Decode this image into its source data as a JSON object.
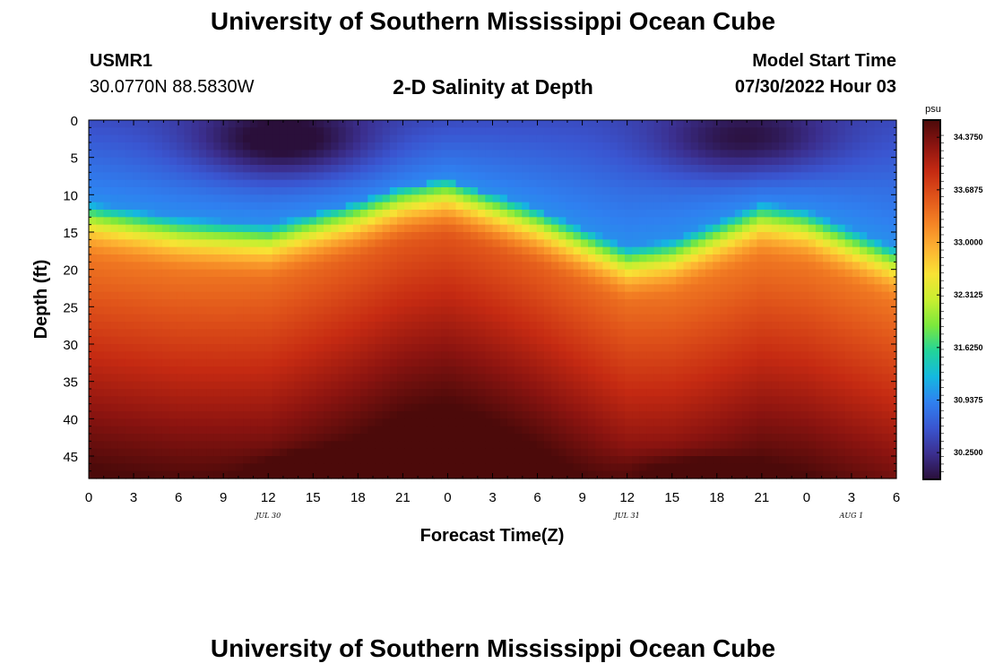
{
  "header": {
    "title": "University of Southern Mississippi Ocean Cube",
    "station": "USMR1",
    "coords": "30.0770N  88.5830W",
    "subtitle": "2-D Salinity at Depth",
    "model_start_label": "Model Start Time",
    "model_start_time": "07/30/2022 Hour 03"
  },
  "footer": {
    "title": "University of Southern Mississippi Ocean Cube"
  },
  "chart_data": {
    "type": "heatmap",
    "title": "2-D Salinity at Depth",
    "xlabel": "Forecast Time(Z)",
    "ylabel": "Depth (ft)",
    "x_tick_labels": [
      "0",
      "3",
      "6",
      "9",
      "12",
      "15",
      "18",
      "21",
      "0",
      "3",
      "6",
      "9",
      "12",
      "15",
      "18",
      "21",
      "0",
      "3",
      "6"
    ],
    "x_range_hours": [
      0,
      54
    ],
    "date_labels": [
      {
        "label": "JUL 30",
        "hour": 12
      },
      {
        "label": "JUL 31",
        "hour": 36
      },
      {
        "label": "AUG 1",
        "hour": 51
      }
    ],
    "y_tick_labels": [
      "0",
      "5",
      "10",
      "15",
      "20",
      "25",
      "30",
      "35",
      "40",
      "45"
    ],
    "y_range": [
      0,
      48
    ],
    "colorbar": {
      "unit": "psu",
      "range": [
        29.9,
        34.6
      ],
      "labels": [
        "34.3750",
        "33.6875",
        "33.0000",
        "32.3125",
        "31.6250",
        "30.9375",
        "30.2500"
      ],
      "levels": [
        34.375,
        33.6875,
        33.0,
        32.3125,
        31.625,
        30.9375,
        30.25
      ]
    },
    "halocline_depth_ft": [
      [
        0,
        11
      ],
      [
        6,
        13
      ],
      [
        12,
        14
      ],
      [
        18,
        11
      ],
      [
        21,
        9
      ],
      [
        24,
        8
      ],
      [
        30,
        12
      ],
      [
        36,
        17
      ],
      [
        39,
        16
      ],
      [
        45,
        11
      ],
      [
        48,
        12
      ],
      [
        54,
        17
      ]
    ],
    "surface_minima": [
      {
        "hour": 13,
        "depth_ft": 3,
        "salinity": 29.9
      },
      {
        "hour": 44,
        "depth_ft": 3,
        "salinity": 30.1
      }
    ],
    "bottom_maxima": [
      {
        "hour": 16,
        "depth_ft": 47,
        "salinity": 34.6
      },
      {
        "hour": 40,
        "depth_ft": 47,
        "salinity": 34.4
      }
    ]
  },
  "colors": {
    "scale": [
      "#2a0f3a",
      "#3b2f8f",
      "#3a55d0",
      "#2f80f0",
      "#14b8e0",
      "#22d49a",
      "#7be83c",
      "#c8ef30",
      "#f8e234",
      "#fdb232",
      "#f48224",
      "#e0541a",
      "#c52a12",
      "#8c1410",
      "#4c0a0a"
    ]
  }
}
